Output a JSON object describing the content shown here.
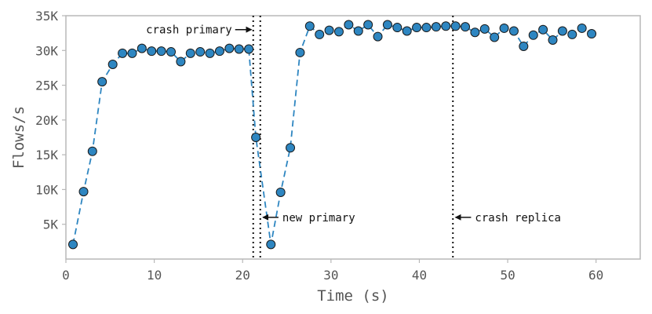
{
  "chart_data": {
    "type": "scatter",
    "title": "",
    "xlabel": "Time (s)",
    "ylabel": "Flows/s",
    "xlim": [
      0,
      65
    ],
    "ylim": [
      0,
      35000
    ],
    "grid": false,
    "xticks": [
      {
        "value": 0,
        "label": "0"
      },
      {
        "value": 10,
        "label": "10"
      },
      {
        "value": 20,
        "label": "20"
      },
      {
        "value": 30,
        "label": "30"
      },
      {
        "value": 40,
        "label": "40"
      },
      {
        "value": 50,
        "label": "50"
      },
      {
        "value": 60,
        "label": "60"
      }
    ],
    "yticks": [
      {
        "value": 5000,
        "label": "5K"
      },
      {
        "value": 10000,
        "label": "10K"
      },
      {
        "value": 15000,
        "label": "15K"
      },
      {
        "value": 20000,
        "label": "20K"
      },
      {
        "value": 25000,
        "label": "25K"
      },
      {
        "value": 30000,
        "label": "30K"
      },
      {
        "value": 35000,
        "label": "35K"
      }
    ],
    "series": [
      {
        "color": "#2e86c1",
        "x": [
          0.8,
          2.0,
          3.0,
          4.1,
          5.3,
          6.4,
          7.5,
          8.6,
          9.7,
          10.8,
          11.9,
          13.0,
          14.1,
          15.2,
          16.3,
          17.4,
          18.5,
          19.6,
          20.7,
          21.5,
          23.2,
          24.3,
          25.4,
          26.5,
          27.6,
          28.7,
          29.8,
          30.9,
          32.0,
          33.1,
          34.2,
          35.3,
          36.4,
          37.5,
          38.6,
          39.7,
          40.8,
          41.9,
          43.0,
          44.1,
          45.2,
          46.3,
          47.4,
          48.5,
          49.6,
          50.7,
          51.8,
          52.9,
          54.0,
          55.1,
          56.2,
          57.3,
          58.4,
          59.5
        ],
        "y": [
          2100,
          9700,
          15500,
          25500,
          28000,
          29600,
          29600,
          30300,
          29900,
          29900,
          29800,
          28400,
          29600,
          29800,
          29600,
          29900,
          30300,
          30200,
          30200,
          17500,
          2100,
          9600,
          16000,
          29700,
          33500,
          32300,
          32900,
          32700,
          33700,
          32800,
          33700,
          32000,
          33700,
          33300,
          32800,
          33300,
          33300,
          33400,
          33500,
          33500,
          33400,
          32600,
          33100,
          31900,
          33200,
          32800,
          30600,
          32200,
          33000,
          31500,
          32800,
          32300,
          33200,
          32400
        ]
      }
    ],
    "event_lines": [
      {
        "x": 21.2
      },
      {
        "x": 22.0
      },
      {
        "x": 43.8
      }
    ],
    "annotations": [
      {
        "text": "crash primary",
        "y": 33000,
        "x": 18.8,
        "arrow_to": 21.0,
        "align": "end"
      },
      {
        "text": "new primary",
        "y": 6000,
        "x": 24.5,
        "arrow_to": 22.3,
        "align": "start"
      },
      {
        "text": "crash replica",
        "y": 6000,
        "x": 46.3,
        "arrow_to": 44.1,
        "align": "start"
      }
    ]
  }
}
